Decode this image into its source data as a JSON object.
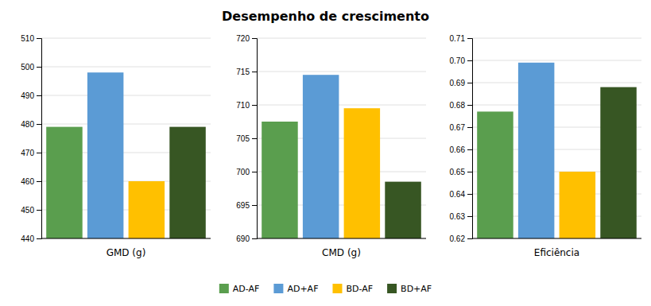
{
  "chart_data": [
    {
      "type": "bar",
      "title": "Desempenho de crescimento",
      "xlabel": "GMD (g)",
      "series": [
        {
          "name": "AD-AF",
          "color": "#5a9e4e",
          "values": [
            479
          ]
        },
        {
          "name": "AD+AF",
          "color": "#5b9bd5",
          "values": [
            498
          ]
        },
        {
          "name": "BD-AF",
          "color": "#ffc000",
          "values": [
            460
          ]
        },
        {
          "name": "BD+AF",
          "color": "#375623",
          "values": [
            479
          ]
        }
      ],
      "ylim": [
        440,
        510
      ],
      "yticks": [
        440,
        450,
        460,
        470,
        480,
        490,
        500,
        510
      ],
      "grid": true,
      "tick_labels": "y",
      "legend": "bottom"
    },
    {
      "type": "bar",
      "xlabel": "CMD (g)",
      "series": [
        {
          "color": "#5a9e4e",
          "values": [
            707.5
          ]
        },
        {
          "color": "#5b9bd5",
          "values": [
            714.5
          ]
        },
        {
          "color": "#ffc000",
          "values": [
            709.5
          ]
        },
        {
          "color": "#375623",
          "values": [
            698.5
          ]
        }
      ],
      "ylim": [
        690,
        720
      ],
      "yticks": [
        690,
        695,
        700,
        705,
        710,
        715,
        720
      ],
      "grid": true,
      "tick_labels": "y"
    },
    {
      "type": "bar",
      "xlabel": "Eficiência",
      "series": [
        {
          "color": "#5a9e4e",
          "values": [
            0.677
          ]
        },
        {
          "color": "#5b9bd5",
          "values": [
            0.699
          ]
        },
        {
          "color": "#ffc000",
          "values": [
            0.65
          ]
        },
        {
          "color": "#375623",
          "values": [
            0.688
          ]
        }
      ],
      "ylim": [
        0.62,
        0.71
      ],
      "yticks": [
        0.62,
        0.63,
        0.64,
        0.65,
        0.66,
        0.67,
        0.68,
        0.69,
        {
          "value": 0.7,
          "label": "0.70"
        },
        0.71
      ],
      "grid": true,
      "tick_labels": "y"
    }
  ]
}
